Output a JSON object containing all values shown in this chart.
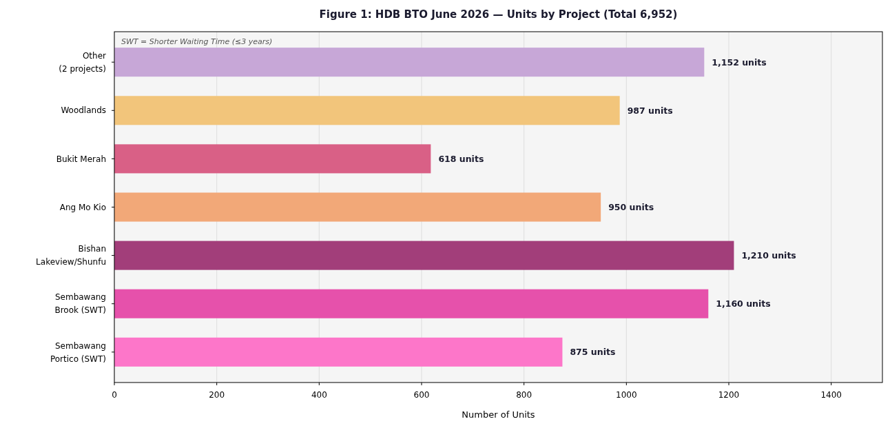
{
  "chart_data": {
    "type": "bar",
    "orientation": "horizontal",
    "title": "Figure 1: HDB BTO June 2026 — Units by Project (Total 6,952)",
    "xlabel": "Number of Units",
    "categories": [
      "Other\n(2 projects)",
      "Woodlands",
      "Bukit Merah",
      "Ang Mo Kio",
      "Bishan\nLakeview/Shunfu",
      "Sembawang\nBrook (SWT)",
      "Sembawang\nPortico (SWT)"
    ],
    "values": [
      1152,
      987,
      618,
      950,
      1210,
      1160,
      875
    ],
    "colors": [
      "#c7a7d7",
      "#f2c57b",
      "#d96086",
      "#f2a878",
      "#a23e7a",
      "#e651ab",
      "#fd76c9"
    ],
    "value_labels": [
      "1,152 units",
      "987 units",
      "618 units",
      "950 units",
      "1,210 units",
      "1,160 units",
      "875 units"
    ],
    "xlim": [
      0,
      1500
    ],
    "xticks": [
      0,
      200,
      400,
      600,
      800,
      1000,
      1200,
      1400
    ],
    "grid": "x",
    "annotations": [
      "SWT = Shorter Waiting Time (≤3 years)"
    ]
  }
}
